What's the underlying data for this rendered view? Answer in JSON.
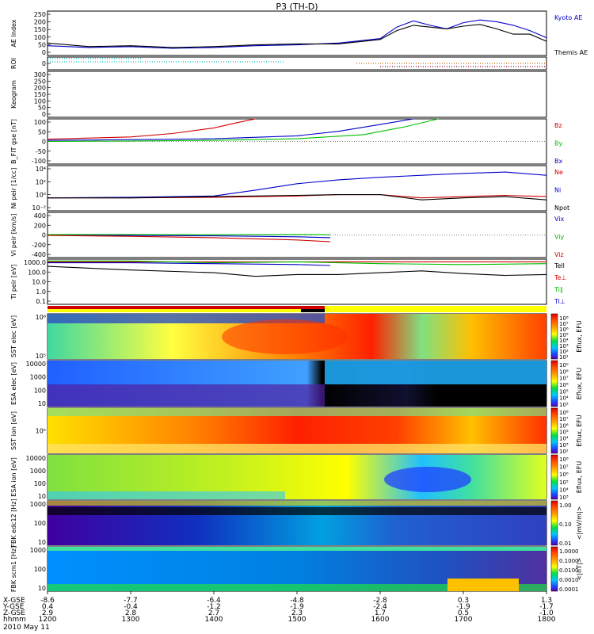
{
  "title": "P3 (TH-D)",
  "date_label": "2010 May 11",
  "colors": {
    "blue": "#0000c8",
    "red": "#d00000",
    "green": "#00c000",
    "black": "#000000"
  },
  "chart_data": [
    {
      "id": "ae",
      "type": "line",
      "ylabel": "AE Index",
      "ylim": [
        0,
        250
      ],
      "yticks": [
        "250",
        "200",
        "150",
        "100",
        "50",
        "0"
      ],
      "series": [
        {
          "name": "Kyoto AE",
          "color": "#0000c8",
          "x": [
            12.0,
            12.5,
            13.0,
            13.5,
            14.0,
            14.5,
            15.0,
            15.5,
            16.0,
            16.2,
            16.4,
            16.6,
            16.8,
            17.0,
            17.2,
            17.4,
            17.6,
            17.8,
            18.0
          ],
          "values": [
            55,
            45,
            50,
            40,
            45,
            55,
            60,
            70,
            95,
            160,
            195,
            170,
            150,
            185,
            200,
            190,
            170,
            140,
            100
          ]
        },
        {
          "name": "Themis AE",
          "color": "#000000",
          "x": [
            12.0,
            12.5,
            13.0,
            13.5,
            14.0,
            14.5,
            15.0,
            15.5,
            16.0,
            16.2,
            16.4,
            16.6,
            16.8,
            17.0,
            17.2,
            17.4,
            17.6,
            17.8,
            18.0
          ],
          "values": [
            70,
            50,
            55,
            45,
            50,
            60,
            65,
            65,
            90,
            140,
            170,
            160,
            150,
            165,
            175,
            150,
            120,
            120,
            80
          ]
        }
      ]
    },
    {
      "id": "roi",
      "type": "scatter",
      "ylabel": "ROI",
      "ylim": [
        0,
        1
      ],
      "yticks": [
        "0"
      ],
      "series": []
    },
    {
      "id": "keogram",
      "type": "heatmap",
      "ylabel": "Keogram",
      "ylim": [
        0,
        300
      ],
      "yticks": [
        "300",
        "250",
        "200",
        "150",
        "100",
        "50",
        "0"
      ],
      "series": []
    },
    {
      "id": "bfit",
      "type": "line",
      "ylabel": "B_FIT gse [nT]",
      "ylim": [
        -100,
        100
      ],
      "yticks": [
        "100",
        "50",
        "0",
        "-50",
        "-100"
      ],
      "series": [
        {
          "name": "Bz",
          "color": "#d00000",
          "x": [
            12.0,
            12.5,
            13.0,
            13.5,
            14.0,
            14.3,
            14.5
          ],
          "values": [
            10,
            15,
            20,
            35,
            60,
            85,
            100
          ]
        },
        {
          "name": "By",
          "color": "#00c000",
          "x": [
            12.0,
            13.0,
            14.0,
            15.0,
            15.8,
            16.3,
            16.7
          ],
          "values": [
            0,
            2,
            5,
            12,
            30,
            65,
            100
          ]
        },
        {
          "name": "Bx",
          "color": "#0000c8",
          "x": [
            12.0,
            13.0,
            14.0,
            15.0,
            15.5,
            16.0,
            16.4
          ],
          "values": [
            5,
            8,
            12,
            25,
            45,
            75,
            100
          ]
        }
      ]
    },
    {
      "id": "ni",
      "type": "line",
      "ylabel": "Ni peir [1/cc]",
      "ylim": [
        -2,
        5
      ],
      "yticks": [
        "10⁴",
        "10²",
        "10⁰",
        "10⁻²"
      ],
      "series": [
        {
          "name": "Ne",
          "color": "#d00000",
          "x": [
            12.0,
            13.0,
            14.0,
            15.0,
            15.5,
            16.0,
            16.5,
            17.0,
            17.5,
            18.0
          ],
          "values": [
            0,
            0,
            0.1,
            0.3,
            0.5,
            0.5,
            0,
            0.2,
            0.4,
            0.2
          ]
        },
        {
          "name": "Ni",
          "color": "#0000c8",
          "x": [
            12.0,
            13.0,
            14.0,
            14.5,
            15.0,
            15.5,
            16.0,
            16.5,
            17.0,
            17.5,
            18.0
          ],
          "values": [
            0,
            0.1,
            0.3,
            1.2,
            2.2,
            2.8,
            3.2,
            3.5,
            3.8,
            4.0,
            3.5
          ]
        },
        {
          "name": "Npot",
          "color": "#000000",
          "x": [
            12.0,
            13.0,
            14.0,
            15.0,
            15.5,
            16.0,
            16.5,
            17.0,
            17.5,
            18.0
          ],
          "values": [
            0,
            0,
            0.2,
            0.4,
            0.5,
            0.5,
            -0.3,
            0,
            0.2,
            -0.3
          ]
        }
      ]
    },
    {
      "id": "vi",
      "type": "line",
      "ylabel": "Vi peir [km/s]",
      "ylim": [
        -500,
        500
      ],
      "yticks": [
        "400",
        "200",
        "0",
        "-200",
        "-400"
      ],
      "series": [
        {
          "name": "Vix",
          "color": "#0000c8",
          "x": [
            12.0,
            13.0,
            14.0,
            15.0,
            15.4
          ],
          "values": [
            0,
            -10,
            -20,
            -40,
            -60
          ]
        },
        {
          "name": "Viy",
          "color": "#00c000",
          "x": [
            12.0,
            13.0,
            14.0,
            15.0,
            15.4
          ],
          "values": [
            10,
            10,
            5,
            10,
            5
          ]
        },
        {
          "name": "Viz",
          "color": "#d00000",
          "x": [
            12.0,
            13.0,
            14.0,
            15.0,
            15.4
          ],
          "values": [
            -10,
            -30,
            -60,
            -110,
            -150
          ]
        }
      ]
    },
    {
      "id": "ti",
      "type": "line",
      "ylabel": "Ti peir [eV]",
      "ylim": [
        -1,
        4
      ],
      "yticks": [
        "1000.0",
        "100.0",
        "10.0",
        "1.0",
        "0.1"
      ],
      "series": [
        {
          "name": "Tell",
          "color": "#000000",
          "x": [
            12.0,
            13.0,
            14.0,
            14.5,
            15.0,
            15.5,
            16.0,
            16.5,
            17.0,
            17.5,
            18.0
          ],
          "values": [
            3.2,
            2.8,
            2.5,
            2.1,
            2.3,
            2.3,
            2.5,
            2.7,
            2.4,
            2.2,
            2.3
          ]
        },
        {
          "name": "Te⊥",
          "color": "#d00000",
          "x": [
            12.0,
            18.0
          ],
          "values": [
            3.7,
            3.7
          ]
        },
        {
          "name": "Ti∥",
          "color": "#00c000",
          "x": [
            12.0,
            13.0,
            14.0,
            15.0,
            16.0,
            17.0,
            18.0
          ],
          "values": [
            3.8,
            3.8,
            3.6,
            3.7,
            3.5,
            3.4,
            3.5
          ]
        },
        {
          "name": "Ti⊥",
          "color": "#0000c8",
          "x": [
            12.0,
            13.0,
            14.0,
            15.0,
            15.4
          ],
          "values": [
            3.6,
            3.6,
            3.5,
            3.4,
            3.3
          ]
        }
      ]
    },
    {
      "id": "sst_e",
      "type": "heatmap",
      "ylabel": "SST elec [eV]",
      "yticks": [
        "10⁶",
        "10⁵"
      ],
      "cbar_label": "Eflux, EFU",
      "cbar_ticks": [
        "10⁸",
        "10⁷",
        "10⁶",
        "10⁵",
        "10⁴",
        "10³",
        "10²",
        "10¹"
      ],
      "series": []
    },
    {
      "id": "esa_e",
      "type": "heatmap",
      "ylabel": "ESA elec [eV]",
      "yticks": [
        "10000",
        "1000",
        "100",
        "10"
      ],
      "cbar_label": "Eflux, EFU",
      "cbar_ticks": [
        "10⁹",
        "10⁸",
        "10⁷",
        "10⁶",
        "10⁵",
        "10⁴",
        "10³"
      ],
      "series": []
    },
    {
      "id": "sst_i",
      "type": "heatmap",
      "ylabel": "SST ion [eV]",
      "yticks": [
        "10⁵"
      ],
      "cbar_label": "Eflux, EFU",
      "cbar_ticks": [
        "10⁸",
        "10⁷",
        "10⁶",
        "10⁵",
        "10⁴",
        "10³",
        "10²"
      ],
      "series": []
    },
    {
      "id": "esa_i",
      "type": "heatmap",
      "ylabel": "ESA ion [eV]",
      "yticks": [
        "10000",
        "1000",
        "100",
        "10"
      ],
      "cbar_label": "Eflux, EFU",
      "cbar_ticks": [
        "10⁸",
        "10⁷",
        "10⁶",
        "10⁵",
        "10⁴",
        "10³"
      ],
      "series": []
    },
    {
      "id": "fbk_e",
      "type": "heatmap",
      "ylabel": "FBK edc12 [Hz]",
      "yticks": [
        "1000",
        "100",
        "10"
      ],
      "cbar_label": "<|mV/m|>",
      "cbar_ticks": [
        "1.00",
        "0.10",
        "0.01"
      ],
      "series": []
    },
    {
      "id": "fbk_b",
      "type": "heatmap",
      "ylabel": "FBK scm1 [Hz]",
      "yticks": [
        "1000",
        "100",
        "10"
      ],
      "cbar_label": "<|nT|>",
      "cbar_ticks": [
        "1.0000",
        "0.1000",
        "0.0100",
        "0.0010",
        "0.0001"
      ],
      "series": []
    }
  ],
  "xaxis": {
    "row_labels": [
      "X-GSE",
      "Y-GSE",
      "Z-GSE",
      "hhmm"
    ],
    "x_gse": [
      "-8.6",
      "-7.7",
      "-6.4",
      "-4.8",
      "-2.8",
      "0.3",
      "1.3"
    ],
    "y_gse": [
      "0.4",
      "-0.4",
      "-1.2",
      "-1.9",
      "-2.4",
      "-1.9",
      "-1.7"
    ],
    "z_gse": [
      "2.9",
      "2.8",
      "2.7",
      "2.3",
      "1.7",
      "0.5",
      "-1.0"
    ],
    "hhmm": [
      "1200",
      "1300",
      "1400",
      "1500",
      "1600",
      "1700",
      "1800"
    ]
  }
}
